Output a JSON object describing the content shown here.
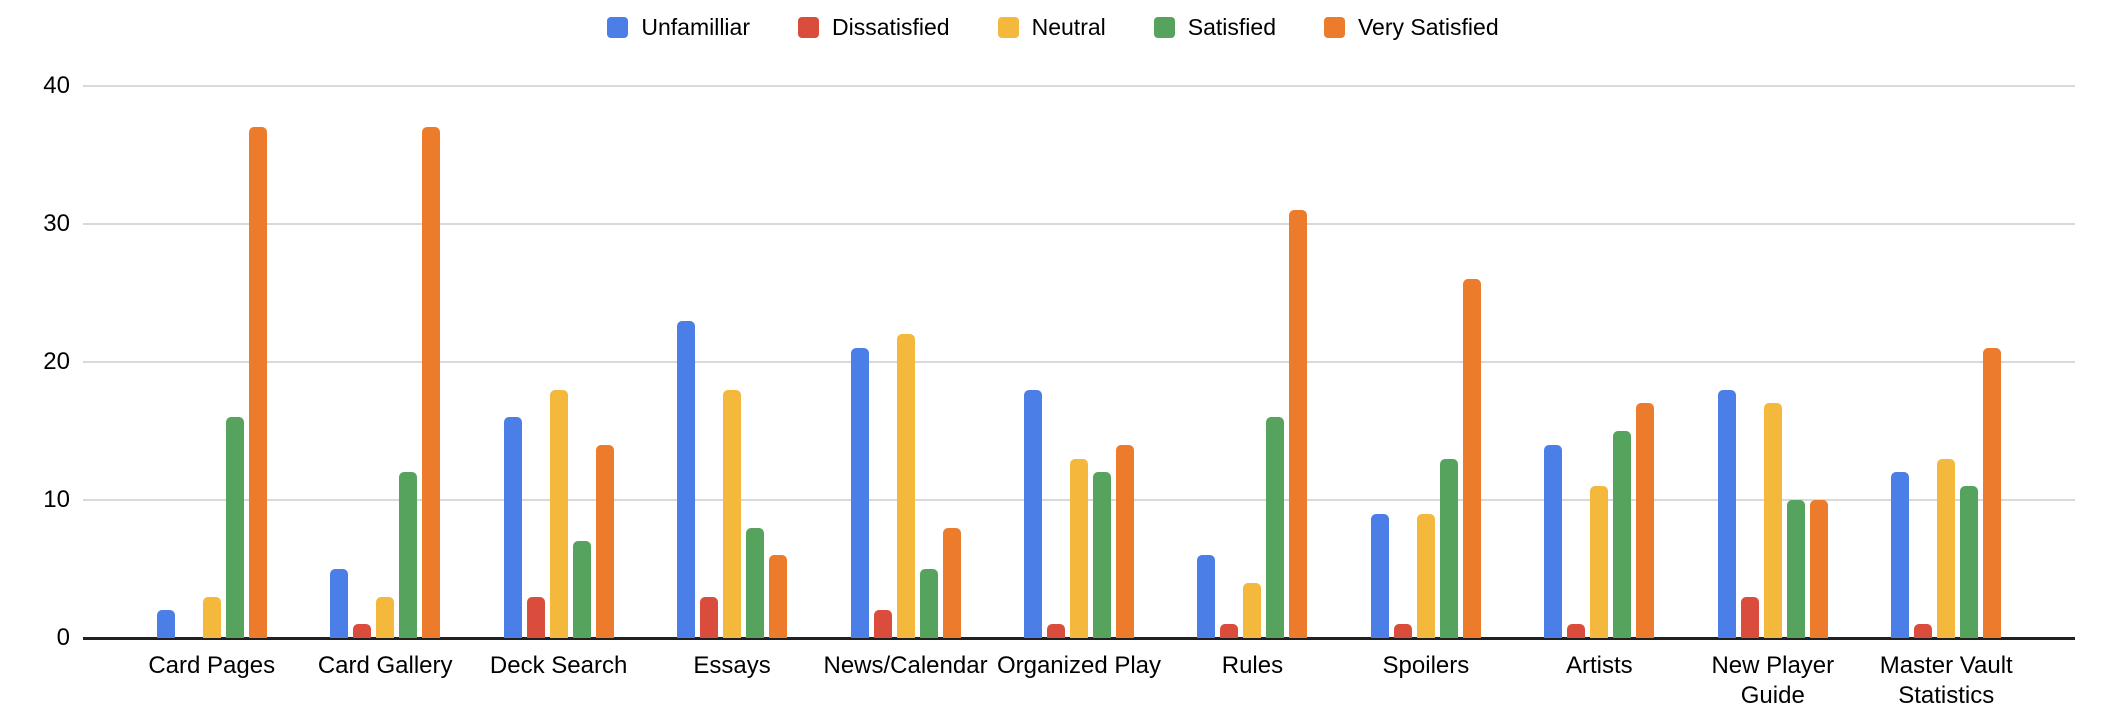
{
  "chart_data": {
    "type": "bar",
    "title": "",
    "xlabel": "",
    "ylabel": "",
    "legend_position": "top",
    "grid": true,
    "background_color": "#ffffff",
    "gridline_color": "#d9d9d9",
    "axis_line_color": "#212121",
    "y_axis": {
      "ticks": [
        0,
        10,
        20,
        30,
        40
      ],
      "max": 40,
      "min": 0
    },
    "categories": [
      "Card Pages",
      "Card Gallery",
      "Deck Search",
      "Essays",
      "News/Calendar",
      "Organized Play",
      "Rules",
      "Spoilers",
      "Artists",
      "New Player Guide",
      "Master Vault Statistics"
    ],
    "series": [
      {
        "name": "Unfamilliar",
        "color": "#4C7EE8",
        "values": [
          2,
          5,
          16,
          23,
          21,
          18,
          6,
          9,
          14,
          18,
          12
        ]
      },
      {
        "name": "Dissatisfied",
        "color": "#DA4C3C",
        "values": [
          0,
          1,
          3,
          3,
          2,
          1,
          1,
          1,
          1,
          3,
          1
        ]
      },
      {
        "name": "Neutral",
        "color": "#F3B83C",
        "values": [
          3,
          3,
          18,
          18,
          22,
          13,
          4,
          9,
          11,
          17,
          13
        ]
      },
      {
        "name": "Satisfied",
        "color": "#55A35C",
        "values": [
          16,
          12,
          7,
          8,
          5,
          12,
          16,
          13,
          15,
          10,
          11
        ]
      },
      {
        "name": "Very Satisfied",
        "color": "#ED7B2C",
        "values": [
          37,
          37,
          14,
          6,
          8,
          14,
          31,
          26,
          17,
          10,
          21
        ]
      }
    ]
  }
}
